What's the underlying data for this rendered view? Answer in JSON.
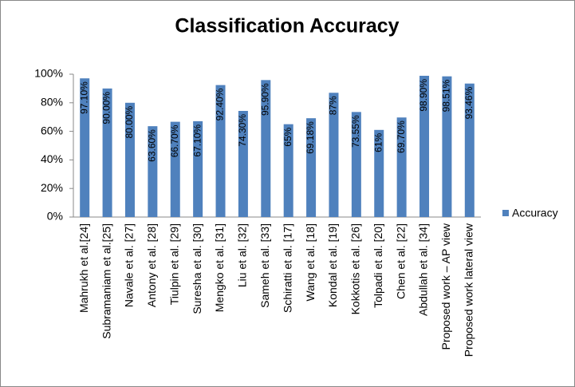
{
  "chart_data": {
    "type": "bar",
    "title": "Classification Accuracy",
    "categories": [
      "Mahrukh et al.[24]",
      "Subramaniam et al.[25]",
      "Navale et al. [27]",
      "Antony et al. [28]",
      "Tiulpin et al. [29]",
      "Suresha et al. [30]",
      "Mengko et al. [31]",
      "Liu et al. [32]",
      "Sameh et al. [33]",
      "Schiratti et al. [17]",
      "Wang et al. [18]",
      "Kondal et al. [19]",
      "Kokkotis et al. [26]",
      "Tolpadi et al. [20]",
      "Chen et al. [22]",
      "Abdullah et al. [34]",
      "Proposed work – AP view",
      "Proposed work lateral view"
    ],
    "series": [
      {
        "name": "Accuracy",
        "color": "#4f81bd",
        "values": [
          97.1,
          90.0,
          80.0,
          63.6,
          66.7,
          67.1,
          92.4,
          74.3,
          95.9,
          65,
          69.18,
          87,
          73.55,
          61,
          69.7,
          98.9,
          98.51,
          93.46
        ],
        "value_labels": [
          "97.10%",
          "90.00%",
          "80.00%",
          "63.60%",
          "66.70%",
          "67.10%",
          "92.40%",
          "74.30%",
          "95.90%",
          "65%",
          "69.18%",
          "87%",
          "73.55%",
          "61%",
          "69.70%",
          "98.90%",
          "98.51%",
          "93.46%"
        ]
      }
    ],
    "ylim": [
      0,
      100
    ],
    "yticks": [
      {
        "value": 0,
        "label": "0%"
      },
      {
        "value": 20,
        "label": "20%"
      },
      {
        "value": 40,
        "label": "40%"
      },
      {
        "value": 60,
        "label": "60%"
      },
      {
        "value": 80,
        "label": "80%"
      },
      {
        "value": 100,
        "label": "100%"
      }
    ],
    "legend": "right"
  }
}
